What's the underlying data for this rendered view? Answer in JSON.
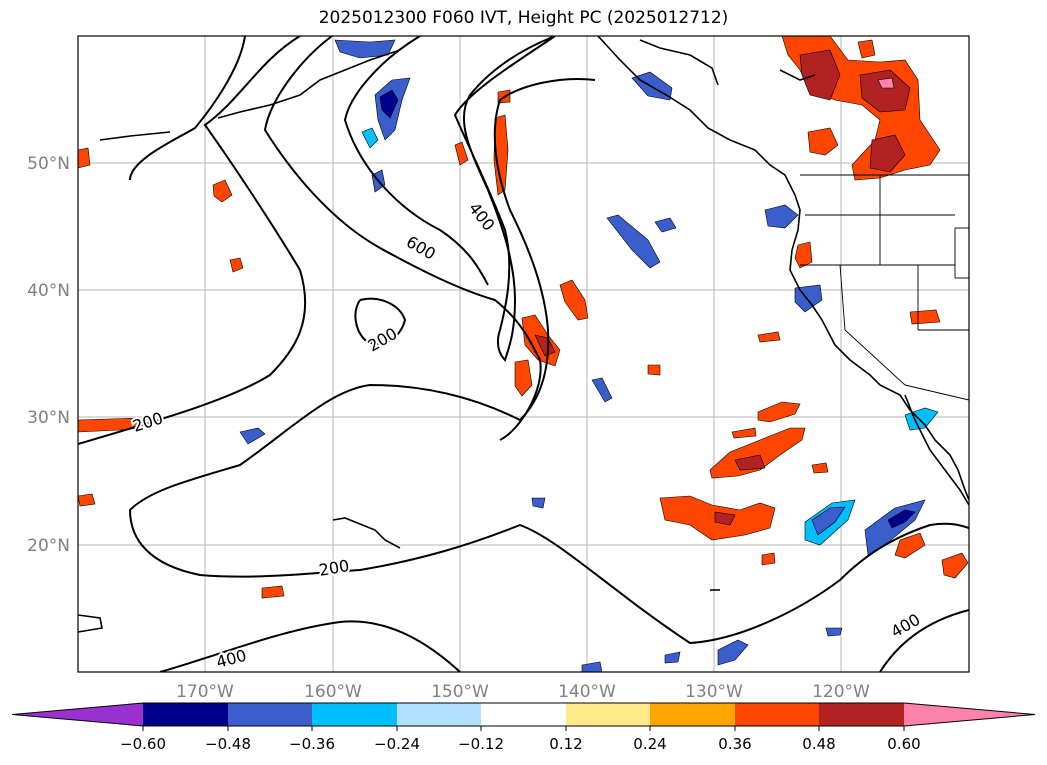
{
  "title": "2025012300 F060 IVT, Height PC (2025012712)",
  "map": {
    "lat_labels": [
      "50°N",
      "40°N",
      "30°N",
      "20°N"
    ],
    "lon_labels": [
      "170°W",
      "160°W",
      "150°W",
      "140°W",
      "130°W",
      "120°W"
    ],
    "contour_labels": [
      "400",
      "600",
      "200",
      "200",
      "200",
      "400",
      "400"
    ],
    "grid": true
  },
  "colorbar": {
    "ticks": [
      "−0.60",
      "−0.48",
      "−0.36",
      "−0.24",
      "−0.12",
      "0.12",
      "0.24",
      "0.36",
      "0.48",
      "0.60"
    ],
    "colors": [
      "#9b30d0",
      "#00008b",
      "#3a5fcd",
      "#00bfff",
      "#b0e2ff",
      "#ffffff",
      "#ffe98a",
      "#ffa500",
      "#ff4500",
      "#b22222",
      "#ff82ab"
    ],
    "extend": "both"
  }
}
